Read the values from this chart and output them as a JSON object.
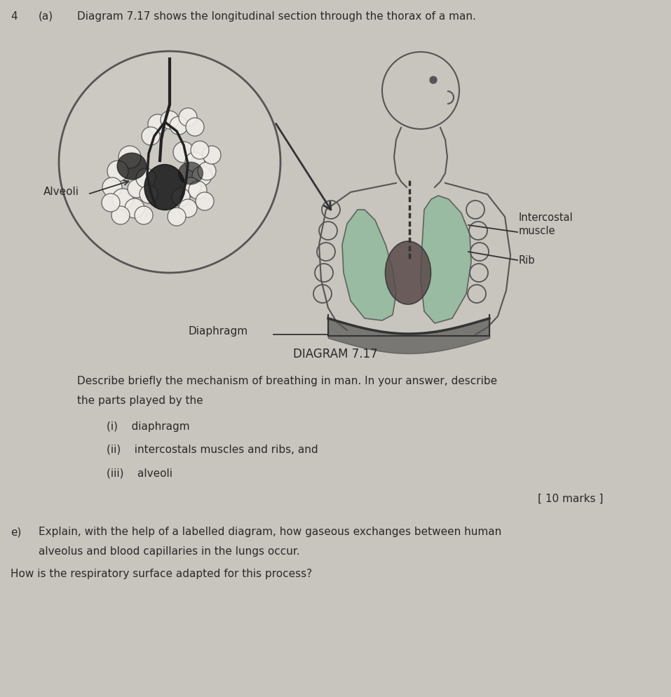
{
  "background_color": "#c8c4be",
  "diagram_title": "DIAGRAM 7.17",
  "question_text_1": "Describe briefly the mechanism of breathing in man. In your answer, describe",
  "question_text_2": "the parts played by the",
  "item_i": "(i)    diaphragm",
  "item_ii": "(ii)    intercostals muscles and ribs, and",
  "item_iii": "(iii)    alveoli",
  "marks": "[ 10 marks ]",
  "part_e_text_1": "Explain, with the help of a labelled diagram, how gaseous exchanges between human",
  "part_e_text_2": "alveolus and blood capillaries in the lungs occur.",
  "part_e_text_3": "How is the respiratory surface adapted for this process?",
  "label_alveoli": "Alveoli",
  "label_intercostal": "Intercostal\nmuscle",
  "label_rib": "Rib",
  "label_diaphragm": "Diaphragm",
  "part_e_prefix": "e)",
  "font_size_main": 11,
  "font_size_diagram_title": 12,
  "text_color": "#2a2a2a"
}
